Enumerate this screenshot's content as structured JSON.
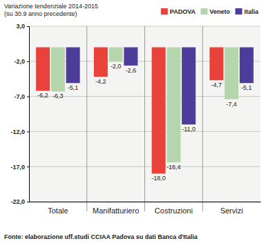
{
  "chart_data": {
    "type": "bar",
    "title": "Variazione tendenziale 2014-2015",
    "subtitle": "(su 30.9 anno precedente)",
    "source": "Fonte: elaborazione uff.studi CCIAA Padova su dati Banca d'Italia",
    "categories": [
      "Totale",
      "Manifatturiero",
      "Costruzioni",
      "Servizi"
    ],
    "series": [
      {
        "name": "PADOVA",
        "color": "#e8423a",
        "values": [
          -6.2,
          -4.2,
          -18.0,
          -4.7
        ],
        "value_labels": [
          "-6,2",
          "-4,2",
          "-18,0",
          "-4,7"
        ]
      },
      {
        "name": "Veneto",
        "color": "#b5d6ad",
        "values": [
          -6.3,
          -2.0,
          -16.4,
          -7.4
        ],
        "value_labels": [
          "-6,3",
          "-2,0",
          "-16,4",
          "-7,4"
        ]
      },
      {
        "name": "Italia",
        "color": "#4b3d99",
        "values": [
          -5.1,
          -2.6,
          -11.0,
          -5.1
        ],
        "value_labels": [
          "-5,1",
          "-2,6",
          "-11,0",
          "-5,1"
        ]
      }
    ],
    "ylim": [
      -22,
      3
    ],
    "yticks": [
      {
        "value": 3,
        "label": "3,0"
      },
      {
        "value": -2,
        "label": "-2,0"
      },
      {
        "value": -7,
        "label": "-7,0"
      },
      {
        "value": -12,
        "label": "-12,0"
      },
      {
        "value": -17,
        "label": "-17,0"
      },
      {
        "value": -22,
        "label": "-22,0"
      }
    ],
    "grid": true,
    "legend": "top-right",
    "data_labels": true
  }
}
